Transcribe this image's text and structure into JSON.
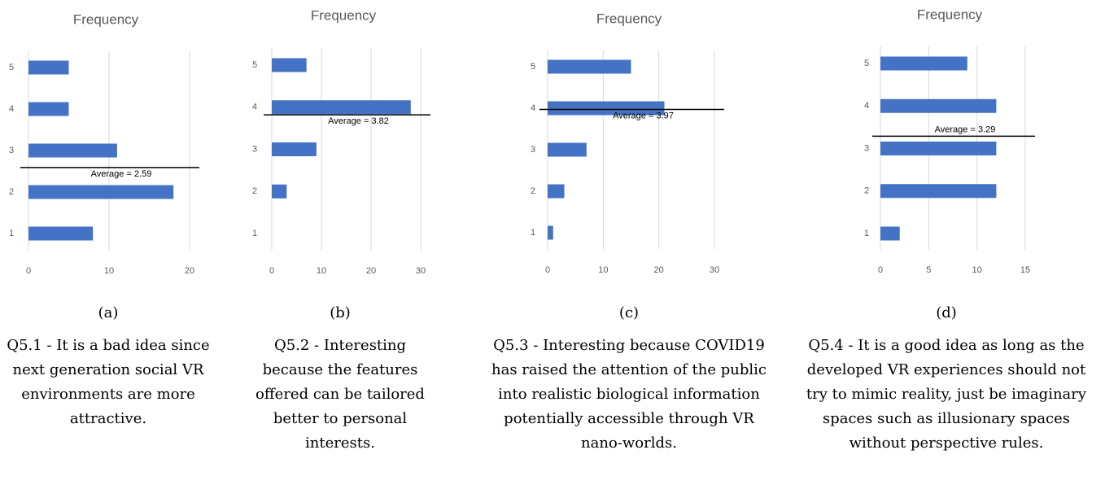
{
  "chart_data": [
    {
      "type": "bar",
      "orientation": "horizontal",
      "title": "Frequency",
      "categories": [
        "1",
        "2",
        "3",
        "4",
        "5"
      ],
      "values": [
        8,
        18,
        11,
        5,
        5
      ],
      "color": "#4472c4",
      "xlim": [
        0,
        20
      ],
      "xticks": [
        0,
        10,
        20
      ],
      "grid": true,
      "average": {
        "value": 2.59,
        "label": "Average = 2.59"
      },
      "panel_label": "(a)",
      "caption": "Q5.1 - It is a bad idea since next generation social VR environments are more attractive."
    },
    {
      "type": "bar",
      "orientation": "horizontal",
      "title": "Frequency",
      "categories": [
        "1",
        "2",
        "3",
        "4",
        "5"
      ],
      "values": [
        0,
        3,
        9,
        28,
        7
      ],
      "color": "#4472c4",
      "xlim": [
        0,
        30
      ],
      "xticks": [
        0,
        10,
        20,
        30
      ],
      "grid": true,
      "average": {
        "value": 3.82,
        "label": "Average = 3.82"
      },
      "panel_label": "(b)",
      "caption": "Q5.2 - Interesting because the features offered can be tailored better to personal interests."
    },
    {
      "type": "bar",
      "orientation": "horizontal",
      "title": "Frequency",
      "categories": [
        "1",
        "2",
        "3",
        "4",
        "5"
      ],
      "values": [
        1,
        3,
        7,
        21,
        15
      ],
      "color": "#4472c4",
      "xlim": [
        0,
        30
      ],
      "xticks": [
        0,
        10,
        20,
        30
      ],
      "grid": true,
      "average": {
        "value": 3.97,
        "label": "Average = 3.97"
      },
      "panel_label": "(c)",
      "caption": "Q5.3 - Interesting because COVID19 has raised the attention of the public into realistic biological information potentially accessible through VR nano-worlds."
    },
    {
      "type": "bar",
      "orientation": "horizontal",
      "title": "Frequency",
      "categories": [
        "1",
        "2",
        "3",
        "4",
        "5"
      ],
      "values": [
        2,
        12,
        12,
        12,
        9
      ],
      "color": "#4472c4",
      "xlim": [
        0,
        15
      ],
      "xticks": [
        0,
        5,
        10,
        15
      ],
      "grid": true,
      "average": {
        "value": 3.29,
        "label": "Average = 3.29"
      },
      "panel_label": "(d)",
      "caption": "Q5.4 - It is a good idea as long as the developed VR experiences should not try to mimic reality, just be imaginary spaces such as illusionary spaces without perspective rules."
    }
  ]
}
